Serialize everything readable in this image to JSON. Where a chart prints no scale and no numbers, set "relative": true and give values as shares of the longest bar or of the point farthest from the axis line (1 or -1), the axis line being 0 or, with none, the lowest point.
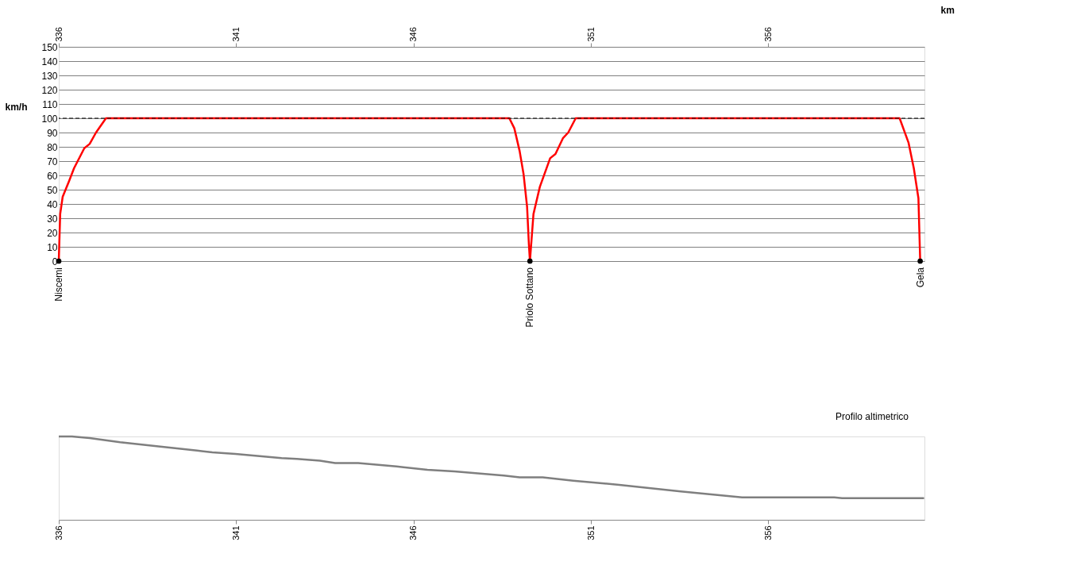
{
  "chart_data": [
    {
      "type": "line",
      "xlabel": "km",
      "ylabel": "km/h",
      "xlim": [
        336,
        360.4
      ],
      "xticks": [
        336,
        341,
        346,
        351,
        356
      ],
      "ylim": [
        0,
        150
      ],
      "yticks": [
        0,
        10,
        20,
        30,
        40,
        50,
        60,
        70,
        80,
        90,
        100,
        110,
        120,
        130,
        140,
        150
      ],
      "grid": "y",
      "legend": false,
      "marker": "none",
      "line_style": "solid",
      "series": [
        {
          "type": "line",
          "color": "#ff0000",
          "x": [
            336.0,
            336.04,
            336.11,
            336.29,
            336.43,
            336.72,
            336.87,
            337.05,
            337.33,
            348.7,
            348.84,
            348.99,
            349.1,
            349.2,
            349.25,
            349.28,
            349.38,
            349.56,
            349.85,
            350.0,
            350.21,
            350.36,
            350.57,
            359.7,
            359.95,
            360.1,
            360.23,
            360.28
          ],
          "values": [
            0,
            33,
            45,
            56,
            65,
            79,
            82,
            90,
            100,
            100,
            93,
            77,
            61,
            38,
            12,
            0,
            33,
            52,
            72,
            75,
            86,
            90,
            100,
            100,
            83,
            65,
            44,
            0
          ]
        },
        {
          "type": "scatter",
          "marker": "circle",
          "color": "#000000",
          "x": [
            336.0,
            349.28,
            360.28
          ],
          "values": [
            0,
            0,
            0
          ]
        }
      ],
      "ref_lines": [
        {
          "axis": "y",
          "value": 100,
          "color": "#000000",
          "line_style": "dashed"
        }
      ],
      "annotations": [
        {
          "text": "Niscemi",
          "x": 336.0,
          "y": 0
        },
        {
          "text": "Priolo Sottano",
          "x": 349.28,
          "y": 0
        },
        {
          "text": "Gela",
          "x": 360.28,
          "y": 0
        }
      ]
    },
    {
      "type": "line",
      "relative": true,
      "xlim": [
        336,
        360.4
      ],
      "xticks": [
        336,
        341,
        346,
        351,
        356
      ],
      "grid": false,
      "legend": "top right",
      "tick_labels": "x",
      "line_style": "solid",
      "series": [
        {
          "name": "Profilo altimetrico",
          "color": "#7f7f7f",
          "x": [
            336.0,
            336.37,
            336.87,
            337.73,
            338.81,
            339.9,
            340.33,
            340.98,
            342.28,
            342.71,
            343.36,
            343.79,
            344.44,
            345.52,
            346.39,
            347.15,
            348.55,
            348.99,
            349.64,
            350.5,
            351.8,
            353.53,
            355.26,
            357.86,
            358.08,
            360.39
          ],
          "values": [
            1.0,
            1.0,
            0.98,
            0.93,
            0.88,
            0.83,
            0.81,
            0.79,
            0.74,
            0.73,
            0.71,
            0.68,
            0.68,
            0.64,
            0.6,
            0.58,
            0.53,
            0.51,
            0.51,
            0.47,
            0.42,
            0.34,
            0.27,
            0.27,
            0.26,
            0.26
          ]
        }
      ]
    }
  ]
}
